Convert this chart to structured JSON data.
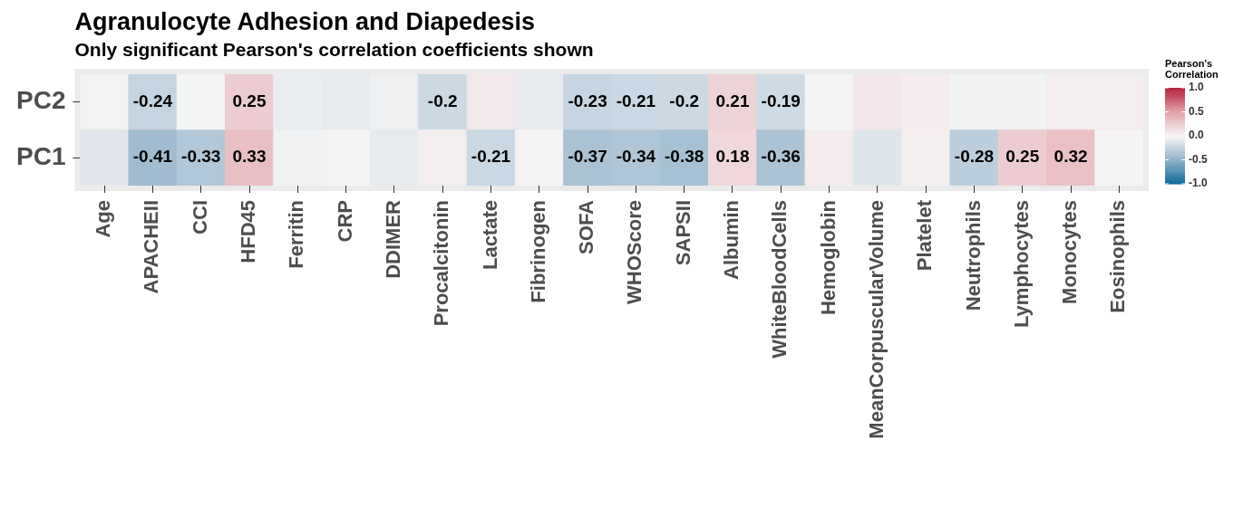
{
  "chart_data": {
    "type": "heatmap",
    "title": "Agranulocyte Adhesion and Diapedesis",
    "subtitle": "Only significant Pearson's correlation coefficients shown",
    "clabel": "Pearson's Correlation",
    "categories": [
      "Age",
      "APACHEII",
      "CCI",
      "HFD45",
      "Ferritin",
      "CRP",
      "DDIMER",
      "Procalcitonin",
      "Lactate",
      "Fibrinogen",
      "SOFA",
      "WHOScore",
      "SAPSII",
      "Albumin",
      "WhiteBloodCells",
      "Hemoglobin",
      "MeanCorpuscularVolume",
      "Platelet",
      "Neutrophils",
      "Lymphocytes",
      "Monocytes",
      "Eosinophils"
    ],
    "y_categories": [
      "PC2",
      "PC1"
    ],
    "cells": [
      [
        0.02,
        -0.24,
        -0.01,
        0.25,
        -0.06,
        -0.08,
        -0.04,
        -0.2,
        0.08,
        -0.07,
        -0.23,
        -0.21,
        -0.2,
        0.21,
        -0.19,
        -0.01,
        0.09,
        0.06,
        -0.02,
        -0.02,
        0.05,
        0.05
      ],
      [
        -0.1,
        -0.41,
        -0.33,
        0.33,
        -0.03,
        0.02,
        -0.08,
        0.05,
        -0.21,
        0.02,
        -0.37,
        -0.34,
        -0.38,
        0.18,
        -0.36,
        0.06,
        -0.11,
        0.04,
        -0.28,
        0.25,
        0.32,
        0.01
      ]
    ],
    "cell_labels": [
      [
        null,
        "-0.24",
        null,
        "0.25",
        null,
        null,
        null,
        "-0.2",
        null,
        null,
        "-0.23",
        "-0.21",
        "-0.2",
        "0.21",
        "-0.19",
        null,
        null,
        null,
        null,
        null,
        null,
        null
      ],
      [
        null,
        "-0.41",
        "-0.33",
        "0.33",
        null,
        null,
        null,
        null,
        "-0.21",
        null,
        "-0.37",
        "-0.34",
        "-0.38",
        "0.18",
        "-0.36",
        null,
        null,
        null,
        "-0.28",
        "0.25",
        "0.32",
        null
      ]
    ],
    "clim": [
      -1,
      1
    ],
    "cticks": [
      {
        "value": 1,
        "label": "1.0"
      },
      {
        "value": 0.5,
        "label": "0.5"
      },
      {
        "value": 0,
        "label": "0.0"
      },
      {
        "value": -0.5,
        "label": "-0.5"
      },
      {
        "value": -1,
        "label": "-1.0"
      }
    ]
  }
}
